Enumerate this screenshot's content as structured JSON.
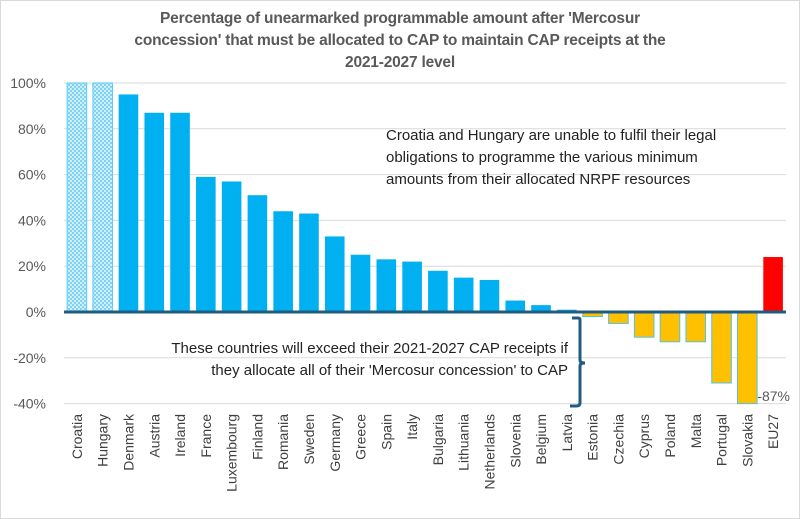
{
  "chart_data": {
    "type": "bar",
    "title": "Percentage of unearmarked programmable amount after 'Mercosur concession' that must be allocated to CAP to maintain CAP receipts at the 2021-2027 level",
    "xlabel": "",
    "ylabel": "",
    "ylim": [
      -40,
      100
    ],
    "yticks": [
      "100%",
      "80%",
      "60%",
      "40%",
      "20%",
      "0%",
      "-20%",
      "-40%"
    ],
    "ytick_values": [
      100,
      80,
      60,
      40,
      20,
      0,
      -20,
      -40
    ],
    "grid": true,
    "categories": [
      "Croatia",
      "Hungary",
      "Denmark",
      "Austria",
      "Ireland",
      "France",
      "Luxembourg",
      "Finland",
      "Romania",
      "Sweden",
      "Germany",
      "Greece",
      "Spain",
      "Italy",
      "Bulgaria",
      "Lithuania",
      "Netherlands",
      "Slovenia",
      "Belgium",
      "Latvia",
      "Estonia",
      "Czechia",
      "Cyprus",
      "Poland",
      "Malta",
      "Portugal",
      "Slovakia",
      "EU27"
    ],
    "values": [
      100,
      100,
      95,
      87,
      87,
      59,
      57,
      51,
      44,
      43,
      33,
      25,
      23,
      22,
      18,
      15,
      14,
      5,
      3,
      1,
      -2,
      -5,
      -11,
      -13,
      -13,
      -31,
      -87,
      24
    ],
    "bar_styles": [
      "hatched",
      "hatched",
      "positive",
      "positive",
      "positive",
      "positive",
      "positive",
      "positive",
      "positive",
      "positive",
      "positive",
      "positive",
      "positive",
      "positive",
      "positive",
      "positive",
      "positive",
      "positive",
      "positive",
      "positive",
      "negative",
      "negative",
      "negative",
      "negative",
      "negative",
      "negative",
      "negative",
      "total"
    ],
    "colors": {
      "positive": "#00B0F0",
      "hatched": "#9BDDF7",
      "negative": "#FFC000",
      "total": "#FF0000",
      "axis": "#1F5C80"
    },
    "data_labels": [
      {
        "category": "Slovakia",
        "text": "-87%"
      }
    ],
    "annotations": [
      "Croatia and Hungary are unable to fulfil their legal obligations to programme the various minimum amounts from their allocated NRPF resources",
      "These countries will exceed their 2021-2027 CAP receipts if they allocate all of their 'Mercosur concession' to CAP"
    ]
  },
  "title_lines": [
    "Percentage of unearmarked programmable amount after 'Mercosur",
    "concession' that must be allocated to CAP to maintain CAP receipts at the",
    "2021-2027 level"
  ],
  "note_top_lines": [
    "Croatia and Hungary are unable to fulfil their legal",
    "obligations to programme the various minimum",
    "amounts from their allocated NRPF resources"
  ],
  "note_bottom_lines": [
    "These countries will exceed their 2021-2027 CAP receipts if",
    "they allocate all of their 'Mercosur concession' to CAP"
  ]
}
